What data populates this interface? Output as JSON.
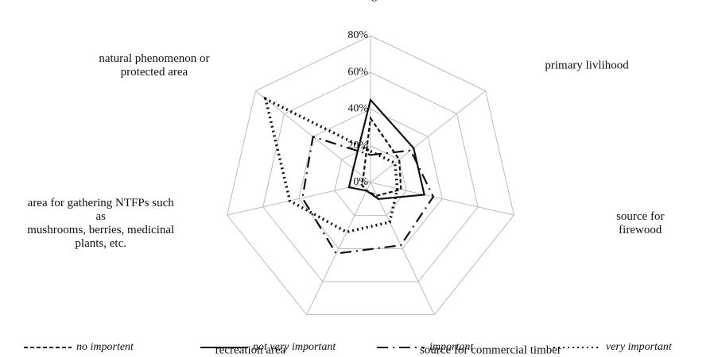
{
  "chart_data": {
    "type": "radar",
    "categories": [
      "hunting area",
      "primary livlihood",
      "source for firewood",
      "source for commercial timber",
      "recreation area",
      "area for gathering NTFPs such\nas\nmushrooms, berries, medicinal\nplants, etc.",
      "natural phenomenon or\nprotected area"
    ],
    "series": [
      {
        "name": "no importent",
        "color": "#111111",
        "dash": "5,3",
        "values": [
          35,
          20,
          17,
          8,
          5,
          5,
          5
        ]
      },
      {
        "name": "not very important",
        "color": "#111111",
        "dash": "none",
        "values": [
          45,
          30,
          30,
          10,
          5,
          12,
          12
        ]
      },
      {
        "name": "important",
        "color": "#111111",
        "dash": "14,6,2,6",
        "values": [
          15,
          28,
          35,
          38,
          43,
          38,
          40
        ]
      },
      {
        "name": "very important",
        "color": "#111111",
        "dash": "2,4",
        "values": [
          17,
          17,
          15,
          24,
          30,
          45,
          73
        ]
      }
    ],
    "ylim": [
      0,
      80
    ],
    "yticks": [
      {
        "value": 0,
        "label": "0%"
      },
      {
        "value": 20,
        "label": "20%"
      },
      {
        "value": 40,
        "label": "40%"
      },
      {
        "value": 60,
        "label": "60%"
      },
      {
        "value": 80,
        "label": "80%"
      }
    ],
    "grid": true
  }
}
